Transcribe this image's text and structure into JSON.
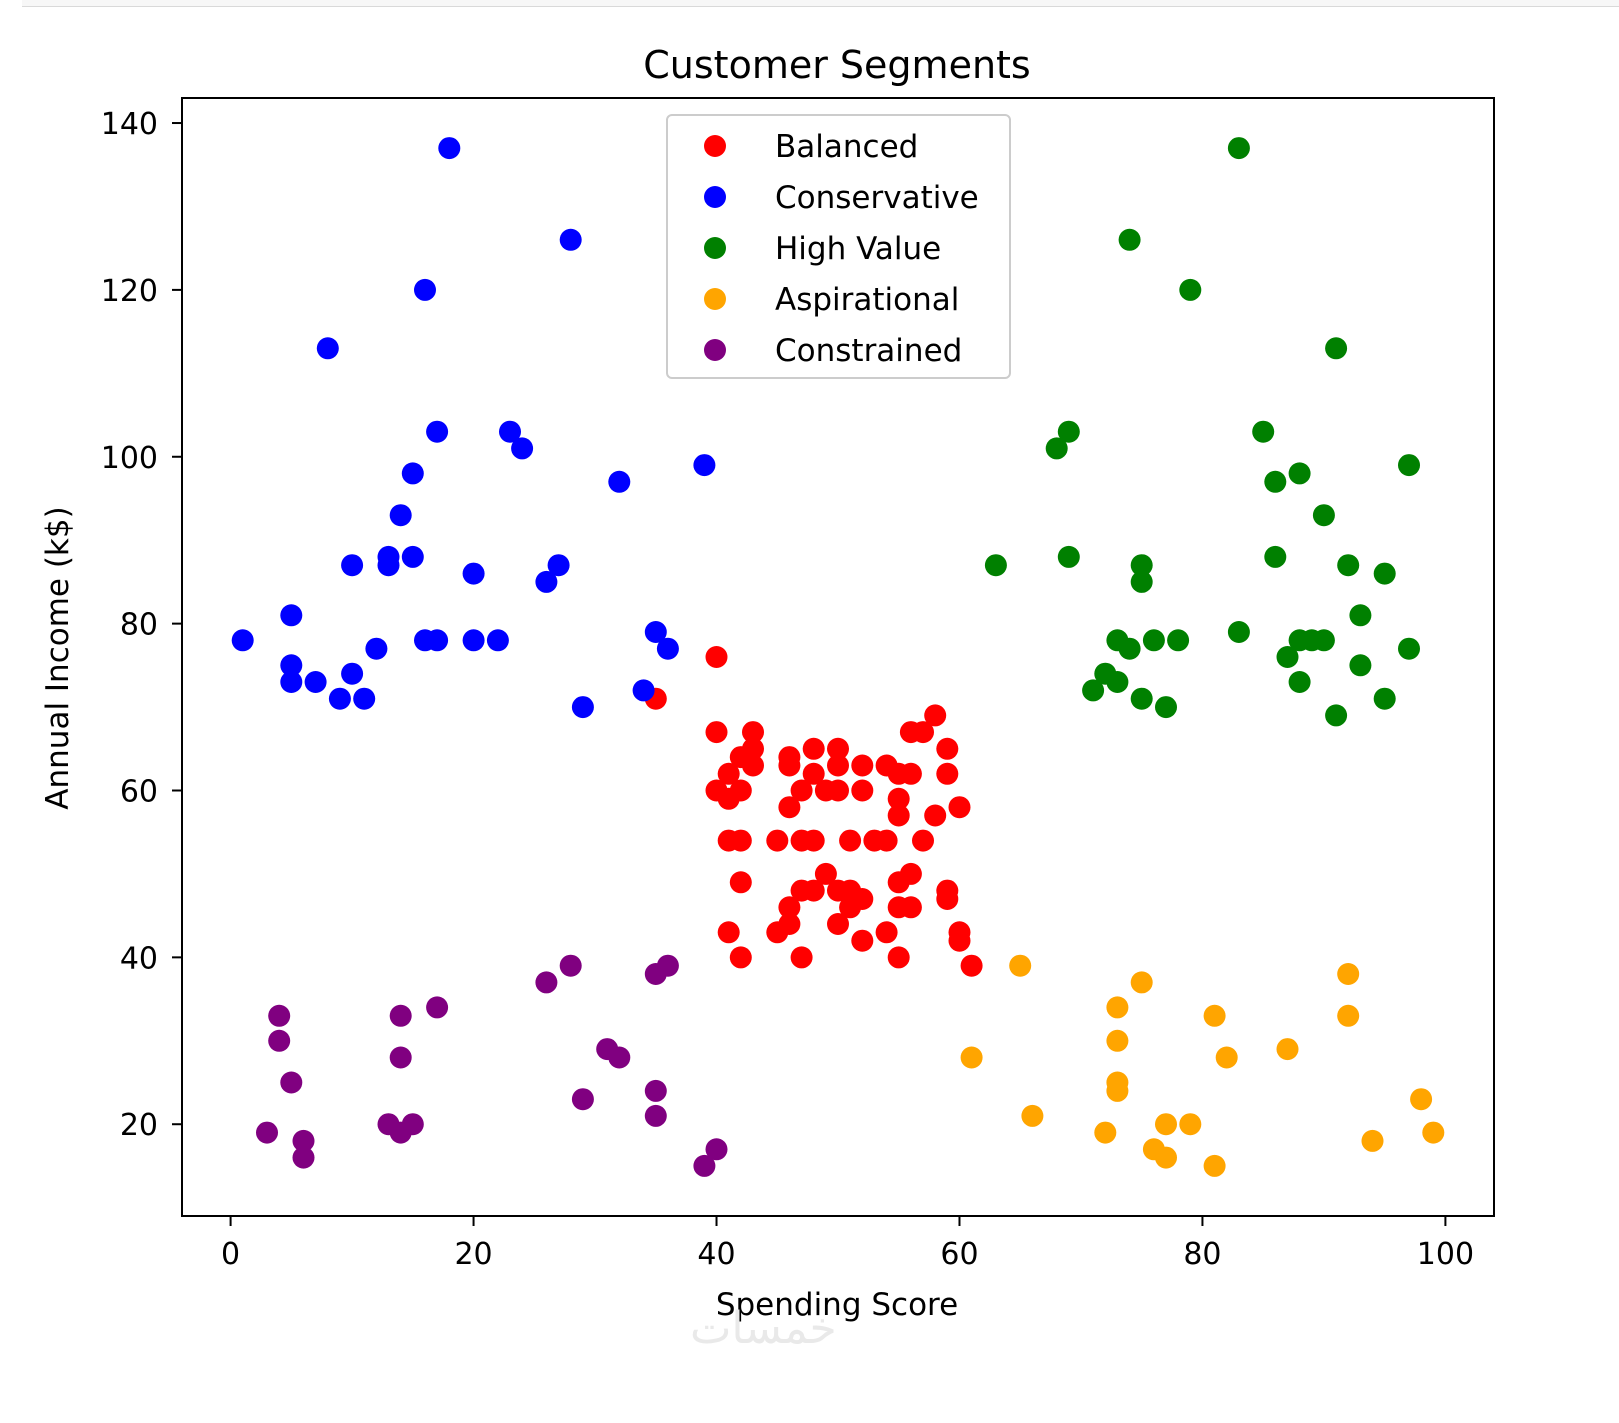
{
  "watermark": "خمسات",
  "chart_data": {
    "type": "scatter",
    "title": "Customer Segments",
    "xlabel": "Spending Score",
    "ylabel": "Annual Income (k$)",
    "xlim": [
      -4,
      104
    ],
    "ylim": [
      9,
      143
    ],
    "xticks": [
      0,
      20,
      40,
      60,
      80,
      100
    ],
    "yticks": [
      20,
      40,
      60,
      80,
      100,
      120,
      140
    ],
    "grid": false,
    "legend_position": "top-center",
    "series": [
      {
        "name": "Balanced",
        "color": "#ff0000",
        "points": [
          [
            35,
            71
          ],
          [
            40,
            76
          ],
          [
            40,
            67
          ],
          [
            43,
            67
          ],
          [
            40,
            60
          ],
          [
            41,
            62
          ],
          [
            41,
            59
          ],
          [
            42,
            64
          ],
          [
            42,
            60
          ],
          [
            42,
            54
          ],
          [
            43,
            65
          ],
          [
            43,
            63
          ],
          [
            41,
            54
          ],
          [
            45,
            54
          ],
          [
            46,
            64
          ],
          [
            46,
            63
          ],
          [
            46,
            58
          ],
          [
            47,
            60
          ],
          [
            47,
            54
          ],
          [
            48,
            65
          ],
          [
            48,
            62
          ],
          [
            48,
            54
          ],
          [
            49,
            60
          ],
          [
            50,
            65
          ],
          [
            50,
            63
          ],
          [
            50,
            60
          ],
          [
            52,
            63
          ],
          [
            52,
            60
          ],
          [
            51,
            54
          ],
          [
            53,
            54
          ],
          [
            54,
            63
          ],
          [
            54,
            54
          ],
          [
            55,
            62
          ],
          [
            55,
            59
          ],
          [
            55,
            57
          ],
          [
            56,
            62
          ],
          [
            56,
            67
          ],
          [
            57,
            67
          ],
          [
            58,
            69
          ],
          [
            58,
            57
          ],
          [
            59,
            65
          ],
          [
            59,
            62
          ],
          [
            60,
            58
          ],
          [
            57,
            54
          ],
          [
            42,
            49
          ],
          [
            47,
            48
          ],
          [
            48,
            48
          ],
          [
            49,
            50
          ],
          [
            50,
            48
          ],
          [
            51,
            48
          ],
          [
            51,
            46
          ],
          [
            52,
            47
          ],
          [
            46,
            46
          ],
          [
            45,
            43
          ],
          [
            46,
            44
          ],
          [
            50,
            44
          ],
          [
            55,
            49
          ],
          [
            56,
            50
          ],
          [
            55,
            46
          ],
          [
            56,
            46
          ],
          [
            59,
            48
          ],
          [
            59,
            47
          ],
          [
            41,
            43
          ],
          [
            42,
            40
          ],
          [
            47,
            40
          ],
          [
            52,
            42
          ],
          [
            54,
            43
          ],
          [
            55,
            40
          ],
          [
            60,
            43
          ],
          [
            60,
            42
          ],
          [
            61,
            39
          ]
        ]
      },
      {
        "name": "Conservative",
        "color": "#0000ff",
        "points": [
          [
            18,
            137
          ],
          [
            28,
            126
          ],
          [
            16,
            120
          ],
          [
            8,
            113
          ],
          [
            17,
            103
          ],
          [
            23,
            103
          ],
          [
            24,
            101
          ],
          [
            15,
            98
          ],
          [
            32,
            97
          ],
          [
            39,
            99
          ],
          [
            14,
            93
          ],
          [
            13,
            88
          ],
          [
            15,
            88
          ],
          [
            10,
            87
          ],
          [
            13,
            87
          ],
          [
            20,
            86
          ],
          [
            27,
            87
          ],
          [
            26,
            85
          ],
          [
            5,
            81
          ],
          [
            1,
            78
          ],
          [
            16,
            78
          ],
          [
            17,
            78
          ],
          [
            20,
            78
          ],
          [
            22,
            78
          ],
          [
            35,
            79
          ],
          [
            36,
            77
          ],
          [
            12,
            77
          ],
          [
            5,
            75
          ],
          [
            10,
            74
          ],
          [
            5,
            73
          ],
          [
            7,
            73
          ],
          [
            9,
            71
          ],
          [
            11,
            71
          ],
          [
            34,
            72
          ],
          [
            29,
            70
          ]
        ]
      },
      {
        "name": "High Value",
        "color": "#008000",
        "points": [
          [
            83,
            137
          ],
          [
            74,
            126
          ],
          [
            79,
            120
          ],
          [
            91,
            113
          ],
          [
            68,
            101
          ],
          [
            69,
            103
          ],
          [
            85,
            103
          ],
          [
            97,
            99
          ],
          [
            86,
            97
          ],
          [
            88,
            98
          ],
          [
            90,
            93
          ],
          [
            63,
            87
          ],
          [
            69,
            88
          ],
          [
            75,
            87
          ],
          [
            75,
            85
          ],
          [
            86,
            88
          ],
          [
            92,
            87
          ],
          [
            95,
            86
          ],
          [
            93,
            81
          ],
          [
            73,
            78
          ],
          [
            74,
            77
          ],
          [
            76,
            78
          ],
          [
            78,
            78
          ],
          [
            83,
            79
          ],
          [
            87,
            76
          ],
          [
            88,
            78
          ],
          [
            89,
            78
          ],
          [
            90,
            78
          ],
          [
            97,
            77
          ],
          [
            72,
            74
          ],
          [
            73,
            73
          ],
          [
            71,
            72
          ],
          [
            88,
            73
          ],
          [
            93,
            75
          ],
          [
            75,
            71
          ],
          [
            77,
            70
          ],
          [
            91,
            69
          ],
          [
            95,
            71
          ]
        ]
      },
      {
        "name": "Aspirational",
        "color": "#ffa500",
        "points": [
          [
            65,
            39
          ],
          [
            75,
            37
          ],
          [
            92,
            38
          ],
          [
            73,
            34
          ],
          [
            81,
            33
          ],
          [
            92,
            33
          ],
          [
            73,
            30
          ],
          [
            87,
            29
          ],
          [
            61,
            28
          ],
          [
            82,
            28
          ],
          [
            73,
            25
          ],
          [
            73,
            24
          ],
          [
            66,
            21
          ],
          [
            98,
            23
          ],
          [
            72,
            19
          ],
          [
            76,
            17
          ],
          [
            77,
            16
          ],
          [
            77,
            20
          ],
          [
            79,
            20
          ],
          [
            81,
            15
          ],
          [
            94,
            18
          ],
          [
            99,
            19
          ]
        ]
      },
      {
        "name": "Constrained",
        "color": "#800080",
        "points": [
          [
            4,
            33
          ],
          [
            4,
            30
          ],
          [
            5,
            25
          ],
          [
            3,
            19
          ],
          [
            6,
            18
          ],
          [
            6,
            16
          ],
          [
            14,
            33
          ],
          [
            14,
            28
          ],
          [
            17,
            34
          ],
          [
            13,
            20
          ],
          [
            14,
            19
          ],
          [
            15,
            20
          ],
          [
            26,
            37
          ],
          [
            28,
            39
          ],
          [
            35,
            38
          ],
          [
            36,
            39
          ],
          [
            31,
            29
          ],
          [
            32,
            28
          ],
          [
            29,
            23
          ],
          [
            35,
            24
          ],
          [
            35,
            21
          ],
          [
            39,
            15
          ],
          [
            40,
            17
          ]
        ]
      }
    ]
  }
}
